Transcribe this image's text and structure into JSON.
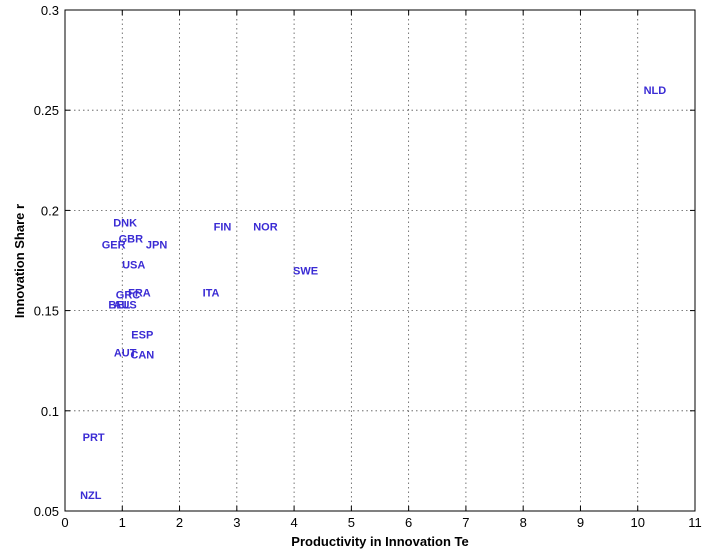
{
  "chart_data": {
    "type": "scatter",
    "xlabel": "Productivity in Innovation Te",
    "ylabel": "Innovation Share r",
    "xlim": [
      0,
      11
    ],
    "ylim": [
      0.05,
      0.3
    ],
    "xticks": [
      0,
      1,
      2,
      3,
      4,
      5,
      6,
      7,
      8,
      9,
      10,
      11
    ],
    "yticks": [
      0.05,
      0.1,
      0.15,
      0.2,
      0.25,
      0.3
    ],
    "xtick_labels": [
      "0",
      "1",
      "2",
      "3",
      "4",
      "5",
      "6",
      "7",
      "8",
      "9",
      "10",
      "11"
    ],
    "ytick_labels": [
      "0.05",
      "0.1",
      "0.15",
      "0.2",
      "0.25",
      "0.3"
    ],
    "grid": true,
    "label_color": "#3a2bd4",
    "points": [
      {
        "label": "NLD",
        "x": 10.3,
        "y": 0.26
      },
      {
        "label": "FIN",
        "x": 2.75,
        "y": 0.192
      },
      {
        "label": "NOR",
        "x": 3.5,
        "y": 0.192
      },
      {
        "label": "DNK",
        "x": 1.05,
        "y": 0.194
      },
      {
        "label": "GBR",
        "x": 1.15,
        "y": 0.186
      },
      {
        "label": "GER",
        "x": 0.85,
        "y": 0.183
      },
      {
        "label": "JPN",
        "x": 1.6,
        "y": 0.183
      },
      {
        "label": "USA",
        "x": 1.2,
        "y": 0.173
      },
      {
        "label": "SWE",
        "x": 4.2,
        "y": 0.17
      },
      {
        "label": "ITA",
        "x": 2.55,
        "y": 0.159
      },
      {
        "label": "FRA",
        "x": 1.3,
        "y": 0.159
      },
      {
        "label": "GRC",
        "x": 1.1,
        "y": 0.158
      },
      {
        "label": "BEL",
        "x": 0.95,
        "y": 0.153
      },
      {
        "label": "AUS",
        "x": 1.05,
        "y": 0.153
      },
      {
        "label": "ESP",
        "x": 1.35,
        "y": 0.138
      },
      {
        "label": "AUT",
        "x": 1.05,
        "y": 0.129
      },
      {
        "label": "CAN",
        "x": 1.35,
        "y": 0.128
      },
      {
        "label": "PRT",
        "x": 0.5,
        "y": 0.087
      },
      {
        "label": "NZL",
        "x": 0.45,
        "y": 0.058
      }
    ]
  }
}
